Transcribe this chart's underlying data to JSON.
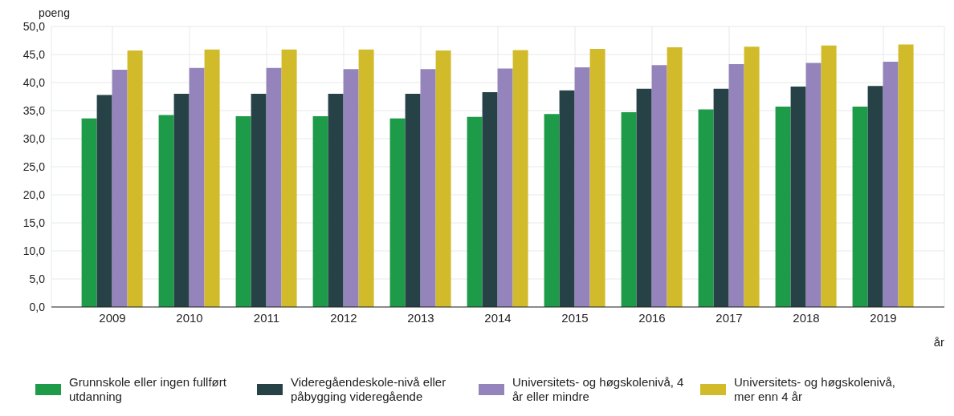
{
  "chart_data": {
    "type": "bar",
    "xlabel": "år",
    "ylabel": "poeng",
    "categories": [
      "2009",
      "2010",
      "2011",
      "2012",
      "2013",
      "2014",
      "2015",
      "2016",
      "2017",
      "2018",
      "2019"
    ],
    "series": [
      {
        "name": "Grunnskole eller ingen fullført utdanning",
        "color": "#1e9b48",
        "values": [
          33.6,
          34.2,
          34.0,
          34.0,
          33.6,
          33.9,
          34.4,
          34.7,
          35.2,
          35.7,
          35.7
        ]
      },
      {
        "name": "Videregåendeskole-nivå eller påbygging videregående",
        "color": "#274247",
        "values": [
          37.8,
          38.0,
          38.0,
          38.0,
          38.0,
          38.3,
          38.6,
          38.9,
          38.9,
          39.3,
          39.4
        ]
      },
      {
        "name": "Universitets- og høgskolenivå, 4 år eller mindre",
        "color": "#9584bb",
        "values": [
          42.3,
          42.6,
          42.6,
          42.4,
          42.4,
          42.5,
          42.7,
          43.1,
          43.3,
          43.5,
          43.7
        ]
      },
      {
        "name": "Universitets- og høgskolenivå, mer enn 4 år",
        "color": "#d2bb2a",
        "values": [
          45.7,
          45.9,
          45.9,
          45.9,
          45.7,
          45.8,
          46.0,
          46.3,
          46.4,
          46.6,
          46.8
        ]
      }
    ],
    "ylim": [
      0,
      50
    ],
    "yticks": [
      {
        "value": 0,
        "label": "0,0"
      },
      {
        "value": 5,
        "label": "5,0"
      },
      {
        "value": 10,
        "label": "10,0"
      },
      {
        "value": 15,
        "label": "15,0"
      },
      {
        "value": 20,
        "label": "20,0"
      },
      {
        "value": 25,
        "label": "25,0"
      },
      {
        "value": 30,
        "label": "30,0"
      },
      {
        "value": 35,
        "label": "35,0"
      },
      {
        "value": 40,
        "label": "40,0"
      },
      {
        "value": 45,
        "label": "45,0"
      },
      {
        "value": 50,
        "label": "50,0"
      }
    ],
    "grid": true,
    "legend": "bottom"
  }
}
